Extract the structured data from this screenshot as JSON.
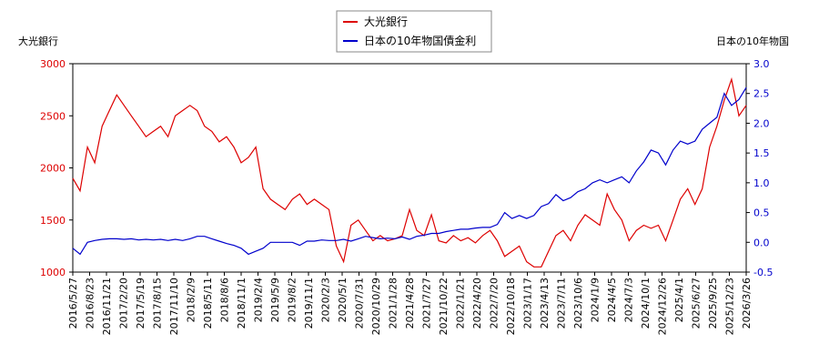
{
  "chart_data": {
    "type": "line",
    "left_axis_label": "大光銀行",
    "right_axis_label": "日本の10年物国",
    "left_ylim": [
      1000,
      3000
    ],
    "left_yticks": [
      1000,
      1500,
      2000,
      2500,
      3000
    ],
    "right_ylim": [
      -0.5,
      3.0
    ],
    "right_yticks": [
      "-0.5",
      "0.0",
      "0.5",
      "1.0",
      "1.5",
      "2.0",
      "2.5",
      "3.0"
    ],
    "x_tick_labels": [
      "2016/5/27",
      "2016/8/23",
      "2016/11/21",
      "2017/2/20",
      "2017/5/19",
      "2017/8/15",
      "2017/11/10",
      "2018/2/9",
      "2018/5/11",
      "2018/8/6",
      "2018/11/1",
      "2019/2/4",
      "2019/5/9",
      "2019/8/2",
      "2019/11/1",
      "2020/2/3",
      "2020/5/1",
      "2020/7/31",
      "2020/10/29",
      "2021/1/28",
      "2021/4/28",
      "2021/7/27",
      "2021/10/22",
      "2022/1/21",
      "2022/4/20",
      "2022/7/20",
      "2022/10/18",
      "2023/1/17",
      "2023/4/13",
      "2023/7/11",
      "2023/10/6",
      "2024/1/9",
      "2024/4/5",
      "2024/7/3",
      "2024/10/1",
      "2024/12/26",
      "2025/4/1",
      "2025/6/27",
      "2025/9/25",
      "2025/12/23",
      "2026/3/26"
    ],
    "legend_position": "top-center",
    "grid": false,
    "series": [
      {
        "name": "大光銀行",
        "color": "#dd0000",
        "axis": "left",
        "values": [
          1900,
          1780,
          2200,
          2050,
          2400,
          2550,
          2700,
          2600,
          2500,
          2400,
          2300,
          2350,
          2400,
          2300,
          2500,
          2550,
          2600,
          2550,
          2400,
          2350,
          2250,
          2300,
          2200,
          2050,
          2100,
          2200,
          1800,
          1700,
          1650,
          1600,
          1700,
          1750,
          1650,
          1700,
          1650,
          1600,
          1250,
          1100,
          1450,
          1500,
          1400,
          1300,
          1350,
          1300,
          1320,
          1350,
          1600,
          1400,
          1350,
          1550,
          1300,
          1280,
          1350,
          1300,
          1330,
          1280,
          1350,
          1400,
          1300,
          1150,
          1200,
          1250,
          1100,
          1050,
          1050,
          1200,
          1350,
          1400,
          1300,
          1450,
          1550,
          1500,
          1450,
          1750,
          1600,
          1500,
          1300,
          1400,
          1450,
          1420,
          1450,
          1300,
          1500,
          1700,
          1800,
          1650,
          1800,
          2200,
          2400,
          2650,
          2850,
          2500,
          2600
        ]
      },
      {
        "name": "日本の10年物国債金利",
        "color": "#0000cc",
        "axis": "right",
        "values": [
          -0.1,
          -0.2,
          0.0,
          0.03,
          0.05,
          0.06,
          0.06,
          0.05,
          0.06,
          0.04,
          0.05,
          0.04,
          0.05,
          0.03,
          0.05,
          0.03,
          0.06,
          0.1,
          0.1,
          0.06,
          0.02,
          -0.02,
          -0.05,
          -0.1,
          -0.2,
          -0.15,
          -0.1,
          0.0,
          0.0,
          0.0,
          0.0,
          -0.05,
          0.02,
          0.02,
          0.04,
          0.03,
          0.03,
          0.05,
          0.02,
          0.06,
          0.1,
          0.08,
          0.06,
          0.07,
          0.06,
          0.09,
          0.05,
          0.1,
          0.12,
          0.15,
          0.15,
          0.18,
          0.2,
          0.22,
          0.22,
          0.24,
          0.25,
          0.25,
          0.3,
          0.5,
          0.4,
          0.45,
          0.4,
          0.45,
          0.6,
          0.65,
          0.8,
          0.7,
          0.75,
          0.85,
          0.9,
          1.0,
          1.05,
          1.0,
          1.05,
          1.1,
          1.0,
          1.2,
          1.35,
          1.55,
          1.5,
          1.3,
          1.55,
          1.7,
          1.65,
          1.7,
          1.9,
          2.0,
          2.1,
          2.5,
          2.3,
          2.4,
          2.6
        ]
      }
    ]
  }
}
